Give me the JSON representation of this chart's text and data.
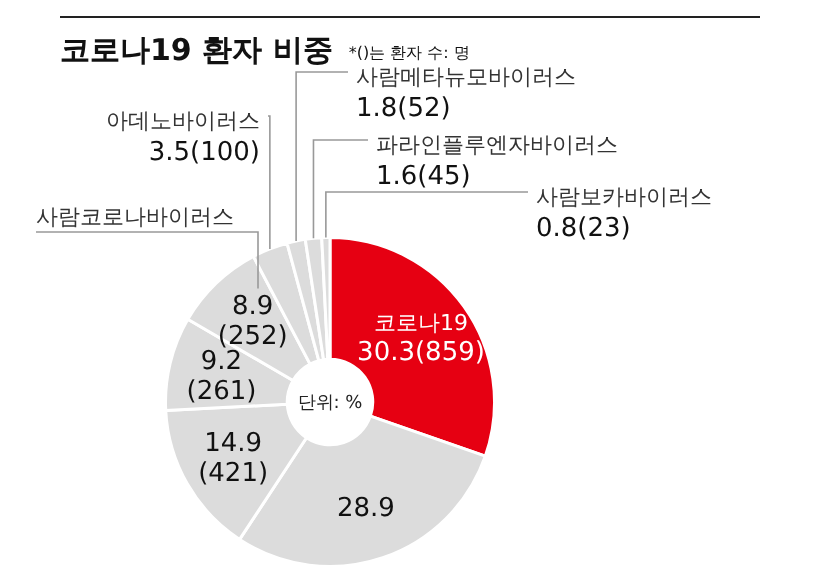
{
  "chart_data": {
    "type": "donut",
    "title": "코로나19 환자 비중",
    "annotations": [
      "*()는 환자 수: 명",
      "단위: %"
    ],
    "categories": [
      "코로나19",
      null,
      null,
      null,
      "사람코로나바이러스",
      "아데노바이러스",
      "사람메타뉴모바이러스",
      "파라인플루엔자바이러스",
      "사람보카바이러스"
    ],
    "values": [
      30.3,
      28.9,
      14.9,
      9.2,
      8.9,
      3.5,
      1.8,
      1.6,
      0.8
    ],
    "value_labels": [
      "30.3(859)",
      "28.9",
      "14.9(421)",
      "9.2(261)",
      "8.9(252)",
      "3.5(100)",
      "1.8(52)",
      "1.6(45)",
      "0.8(23)"
    ],
    "colors": [
      "#e60012",
      "#dcdcdc",
      "#dcdcdc",
      "#dcdcdc",
      "#dcdcdc",
      "#dcdcdc",
      "#dcdcdc",
      "#dcdcdc",
      "#dcdcdc"
    ],
    "legend": false
  }
}
